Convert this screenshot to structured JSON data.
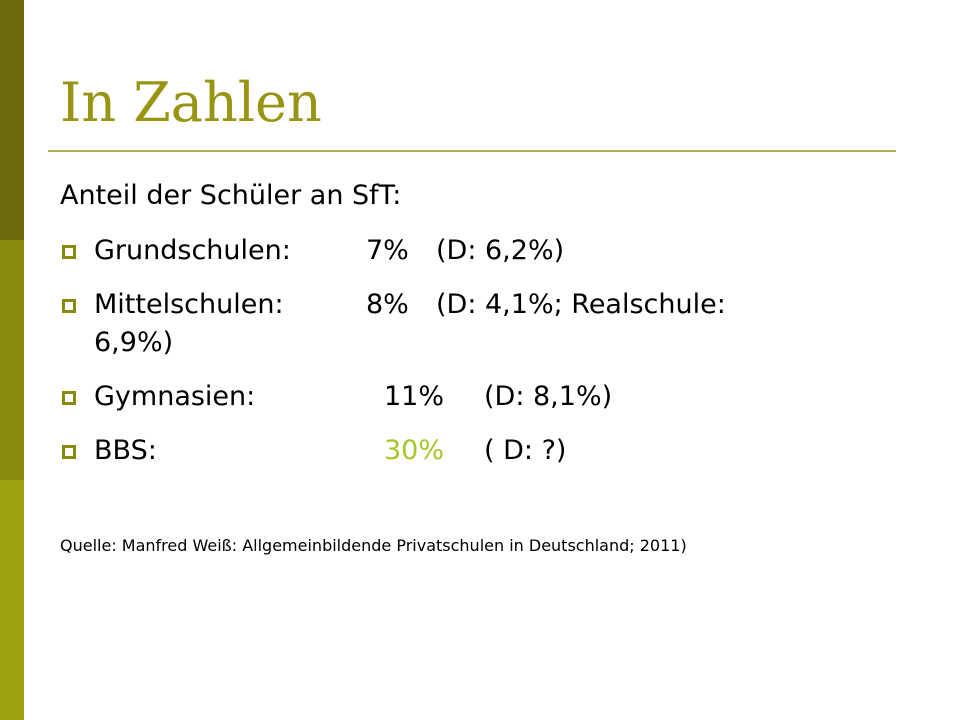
{
  "title": "In Zahlen",
  "subtitle": "Anteil der Schüler an SfT:",
  "items": [
    {
      "label": "Grundschulen:",
      "value": "7%",
      "comparison": "(D: 6,2%)"
    },
    {
      "label": "Mittelschulen:",
      "value": "8%",
      "comparison": "(D: 4,1%; Realschule:",
      "comparison_line2": "6,9%)"
    },
    {
      "label": "Gymnasien:",
      "value": "11%",
      "comparison": "(D: 8,1%)"
    },
    {
      "label": "BBS:",
      "value": "30%",
      "comparison": "( D: ?)"
    }
  ],
  "source": "Quelle: Manfred Weiß: Allgemeinbildende Privatschulen in Deutschland; 2011)",
  "colors": {
    "title": "#999413",
    "bullet": "#888a0c",
    "highlight": "#a6c72a",
    "sidebar_top": "#6b6a0e",
    "sidebar_mid": "#898a10",
    "sidebar_bottom": "#9ca20e"
  },
  "icons": {
    "bullet": "square-bullet-icon"
  }
}
